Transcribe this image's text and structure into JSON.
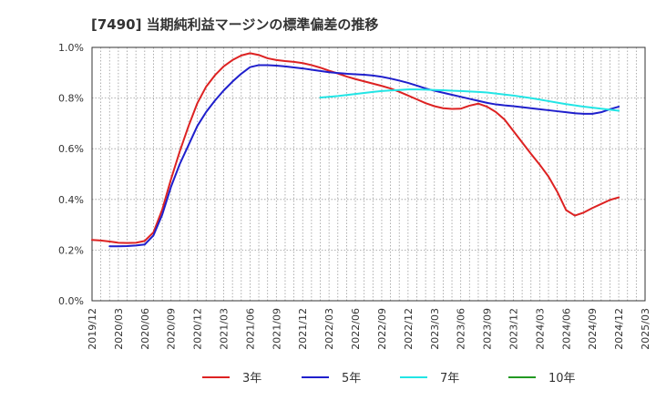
{
  "chart_data": {
    "type": "line",
    "title": "[7490]  当期純利益マージンの標準偏差の推移",
    "xlabel": "",
    "ylabel": "",
    "ylim": [
      0,
      1.0
    ],
    "y_ticks": [
      "0.0%",
      "0.2%",
      "0.4%",
      "0.6%",
      "0.8%",
      "1.0%"
    ],
    "x_ticks": [
      "2019/12",
      "2020/03",
      "2020/06",
      "2020/09",
      "2020/12",
      "2021/03",
      "2021/06",
      "2021/09",
      "2021/12",
      "2022/03",
      "2022/06",
      "2022/09",
      "2022/12",
      "2023/03",
      "2023/06",
      "2023/09",
      "2023/12",
      "2024/03",
      "2024/06",
      "2024/09",
      "2024/12",
      "2025/03"
    ],
    "grid": true,
    "legend_position": "bottom",
    "series": [
      {
        "name": "3年",
        "color": "#dd2222",
        "x": [
          "2019/12",
          "2020/01",
          "2020/02",
          "2020/03",
          "2020/04",
          "2020/05",
          "2020/06",
          "2020/07",
          "2020/08",
          "2020/09",
          "2020/10",
          "2020/11",
          "2020/12",
          "2021/01",
          "2021/02",
          "2021/03",
          "2021/04",
          "2021/05",
          "2021/06",
          "2021/07",
          "2021/08",
          "2021/09",
          "2021/10",
          "2021/11",
          "2021/12",
          "2022/01",
          "2022/02",
          "2022/03",
          "2022/04",
          "2022/05",
          "2022/06",
          "2022/07",
          "2022/08",
          "2022/09",
          "2022/10",
          "2022/11",
          "2022/12",
          "2023/01",
          "2023/02",
          "2023/03",
          "2023/04",
          "2023/05",
          "2023/06",
          "2023/07",
          "2023/08",
          "2023/09",
          "2023/10",
          "2023/11",
          "2023/12",
          "2024/01",
          "2024/02",
          "2024/03",
          "2024/04",
          "2024/05",
          "2024/06",
          "2024/07",
          "2024/08",
          "2024/09",
          "2024/10",
          "2024/11",
          "2024/12"
        ],
        "values": [
          0.24,
          0.238,
          0.234,
          0.229,
          0.228,
          0.229,
          0.236,
          0.27,
          0.36,
          0.48,
          0.59,
          0.69,
          0.78,
          0.845,
          0.89,
          0.925,
          0.95,
          0.968,
          0.977,
          0.97,
          0.957,
          0.95,
          0.946,
          0.943,
          0.938,
          0.93,
          0.92,
          0.908,
          0.897,
          0.885,
          0.875,
          0.866,
          0.857,
          0.848,
          0.838,
          0.825,
          0.81,
          0.795,
          0.78,
          0.768,
          0.76,
          0.757,
          0.758,
          0.77,
          0.778,
          0.766,
          0.745,
          0.715,
          0.67,
          0.625,
          0.58,
          0.537,
          0.49,
          0.43,
          0.358,
          0.336,
          0.348,
          0.366,
          0.382,
          0.398,
          0.408
        ]
      },
      {
        "name": "5年",
        "color": "#1f1fcc",
        "x": [
          "2020/02",
          "2020/03",
          "2020/04",
          "2020/05",
          "2020/06",
          "2020/07",
          "2020/08",
          "2020/09",
          "2020/10",
          "2020/11",
          "2020/12",
          "2021/01",
          "2021/02",
          "2021/03",
          "2021/04",
          "2021/05",
          "2021/06",
          "2021/07",
          "2021/08",
          "2021/09",
          "2021/10",
          "2021/11",
          "2021/12",
          "2022/01",
          "2022/02",
          "2022/03",
          "2022/04",
          "2022/05",
          "2022/06",
          "2022/07",
          "2022/08",
          "2022/09",
          "2022/10",
          "2022/11",
          "2022/12",
          "2023/01",
          "2023/02",
          "2023/03",
          "2023/04",
          "2023/05",
          "2023/06",
          "2023/07",
          "2023/08",
          "2023/09",
          "2023/10",
          "2023/11",
          "2023/12",
          "2024/01",
          "2024/02",
          "2024/03",
          "2024/04",
          "2024/05",
          "2024/06",
          "2024/07",
          "2024/08",
          "2024/09",
          "2024/10",
          "2024/11",
          "2024/12"
        ],
        "values": [
          0.215,
          0.215,
          0.216,
          0.218,
          0.222,
          0.258,
          0.34,
          0.45,
          0.54,
          0.615,
          0.69,
          0.745,
          0.79,
          0.83,
          0.865,
          0.896,
          0.922,
          0.93,
          0.93,
          0.928,
          0.925,
          0.921,
          0.917,
          0.912,
          0.907,
          0.902,
          0.899,
          0.896,
          0.894,
          0.892,
          0.889,
          0.884,
          0.877,
          0.869,
          0.86,
          0.849,
          0.838,
          0.829,
          0.821,
          0.813,
          0.805,
          0.797,
          0.789,
          0.781,
          0.775,
          0.771,
          0.768,
          0.764,
          0.76,
          0.756,
          0.752,
          0.748,
          0.744,
          0.74,
          0.738,
          0.738,
          0.744,
          0.756,
          0.766
        ]
      },
      {
        "name": "7年",
        "color": "#22e5e5",
        "x": [
          "2022/02",
          "2022/03",
          "2022/04",
          "2022/05",
          "2022/06",
          "2022/07",
          "2022/08",
          "2022/09",
          "2022/10",
          "2022/11",
          "2022/12",
          "2023/01",
          "2023/02",
          "2023/03",
          "2023/04",
          "2023/05",
          "2023/06",
          "2023/07",
          "2023/08",
          "2023/09",
          "2023/10",
          "2023/11",
          "2023/12",
          "2024/01",
          "2024/02",
          "2024/03",
          "2024/04",
          "2024/05",
          "2024/06",
          "2024/07",
          "2024/08",
          "2024/09",
          "2024/10",
          "2024/11",
          "2024/12"
        ],
        "values": [
          0.802,
          0.805,
          0.808,
          0.812,
          0.816,
          0.82,
          0.824,
          0.828,
          0.83,
          0.832,
          0.834,
          0.834,
          0.833,
          0.832,
          0.831,
          0.829,
          0.828,
          0.826,
          0.824,
          0.822,
          0.818,
          0.814,
          0.81,
          0.805,
          0.8,
          0.794,
          0.788,
          0.782,
          0.776,
          0.771,
          0.766,
          0.762,
          0.758,
          0.754,
          0.75
        ]
      },
      {
        "name": "10年",
        "color": "#229922",
        "x": [],
        "values": []
      }
    ]
  }
}
